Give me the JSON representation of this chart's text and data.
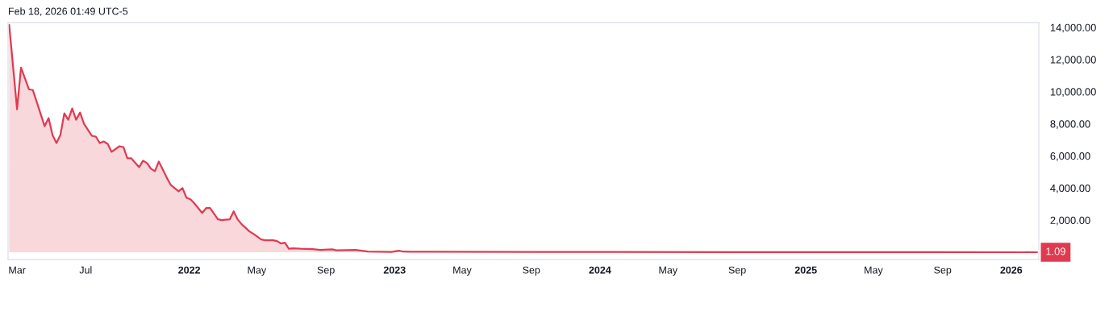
{
  "chart_data": {
    "type": "area",
    "annotations": [
      "Feb 18, 2026 01:49 UTC-5",
      {
        "text": "1.09",
        "x": "2026-02-16",
        "y": 1.09
      }
    ],
    "x": [
      "2021-02-15",
      "2021-03-01",
      "2021-03-08",
      "2021-03-22",
      "2021-03-29",
      "2021-04-19",
      "2021-04-26",
      "2021-05-03",
      "2021-05-10",
      "2021-05-17",
      "2021-05-24",
      "2021-05-31",
      "2021-06-07",
      "2021-06-14",
      "2021-06-21",
      "2021-06-28",
      "2021-07-12",
      "2021-07-19",
      "2021-07-26",
      "2021-08-02",
      "2021-08-09",
      "2021-08-16",
      "2021-08-30",
      "2021-09-06",
      "2021-09-13",
      "2021-09-20",
      "2021-10-04",
      "2021-10-11",
      "2021-10-18",
      "2021-10-25",
      "2021-11-01",
      "2021-11-08",
      "2021-11-22",
      "2021-11-29",
      "2021-12-13",
      "2021-12-20",
      "2021-12-27",
      "2022-01-03",
      "2022-01-10",
      "2022-01-24",
      "2022-01-31",
      "2022-02-07",
      "2022-02-21",
      "2022-02-28",
      "2022-03-14",
      "2022-03-21",
      "2022-03-28",
      "2022-04-04",
      "2022-04-18",
      "2022-04-25",
      "2022-05-09",
      "2022-05-16",
      "2022-05-30",
      "2022-06-06",
      "2022-06-13",
      "2022-06-20",
      "2022-06-27",
      "2022-07-04",
      "2022-07-18",
      "2022-08-08",
      "2022-08-22",
      "2022-09-12",
      "2022-09-19",
      "2022-10-24",
      "2022-11-14",
      "2022-12-26",
      "2023-01-09",
      "2023-01-16",
      "2023-03-06",
      "2023-09-04",
      "2023-12-25",
      "2024-09-02",
      "2025-09-01",
      "2026-02-16"
    ],
    "series": [
      {
        "color": "#e03a50",
        "values": [
          14150,
          8900,
          11500,
          10150,
          10100,
          7850,
          8350,
          7300,
          6800,
          7300,
          8650,
          8250,
          8950,
          8250,
          8700,
          8000,
          7250,
          7200,
          6800,
          6900,
          6750,
          6250,
          6600,
          6550,
          5850,
          5850,
          5300,
          5700,
          5550,
          5200,
          5050,
          5650,
          4650,
          4200,
          3800,
          4000,
          3400,
          3300,
          3050,
          2450,
          2750,
          2750,
          2050,
          2000,
          2050,
          2550,
          2050,
          1750,
          1300,
          1150,
          800,
          750,
          750,
          700,
          550,
          600,
          220,
          250,
          220,
          200,
          150,
          180,
          120,
          150,
          50,
          20,
          100,
          40,
          30,
          20,
          20,
          10,
          10,
          1.09
        ]
      }
    ],
    "xlim": [
      "2021-02-13",
      "2026-02-19"
    ],
    "xticks": [
      {
        "value": "2021-03-01",
        "label": "Mar"
      },
      {
        "value": "2021-07-01",
        "label": "Jul"
      },
      {
        "value": "2022-01-01",
        "label": "2022"
      },
      {
        "value": "2022-05-01",
        "label": "May"
      },
      {
        "value": "2022-09-01",
        "label": "Sep"
      },
      {
        "value": "2023-01-01",
        "label": "2023"
      },
      {
        "value": "2023-05-01",
        "label": "May"
      },
      {
        "value": "2023-09-01",
        "label": "Sep"
      },
      {
        "value": "2024-01-01",
        "label": "2024"
      },
      {
        "value": "2024-05-01",
        "label": "May"
      },
      {
        "value": "2024-09-01",
        "label": "Sep"
      },
      {
        "value": "2025-01-01",
        "label": "2025"
      },
      {
        "value": "2025-05-01",
        "label": "May"
      },
      {
        "value": "2025-09-01",
        "label": "Sep"
      },
      {
        "value": "2026-01-01",
        "label": "2026"
      }
    ],
    "ylim": [
      -450,
      14300
    ],
    "yticks": [
      {
        "value": 2000,
        "label": "2,000.00"
      },
      {
        "value": 4000,
        "label": "4,000.00"
      },
      {
        "value": 6000,
        "label": "6,000.00"
      },
      {
        "value": 8000,
        "label": "8,000.00"
      },
      {
        "value": 10000,
        "label": "10,000.00"
      },
      {
        "value": 12000,
        "label": "12,000.00"
      },
      {
        "value": 14000,
        "label": "14,000.00"
      }
    ]
  }
}
